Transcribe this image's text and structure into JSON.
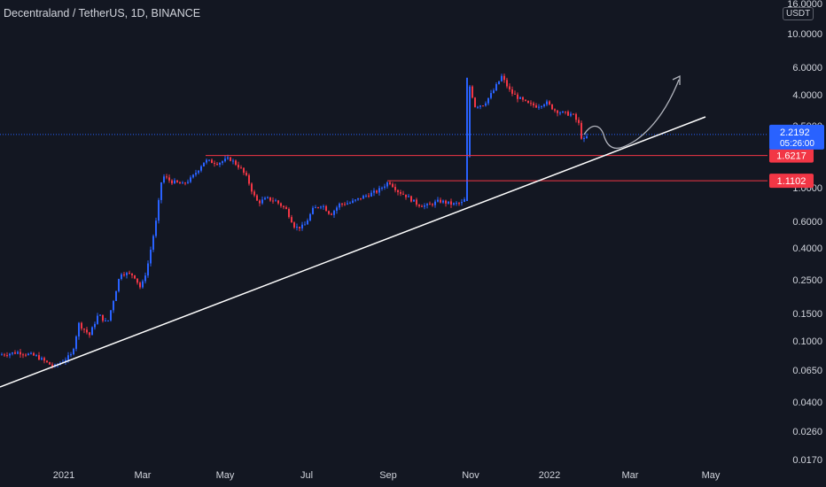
{
  "header": {
    "title": "Decentraland / TetherUS, 1D, BINANCE",
    "currency": "USDT"
  },
  "chart_data": {
    "type": "candlestick",
    "title": "Decentraland / TetherUS, 1D, BINANCE",
    "y_scale": "log",
    "y_ticks": [
      "16.0000",
      "10.0000",
      "6.0000",
      "4.0000",
      "2.5000",
      "1.0000",
      "0.6000",
      "0.4000",
      "0.2500",
      "0.1500",
      "0.1000",
      "0.0650",
      "0.0400",
      "0.0260",
      "0.0170"
    ],
    "x_ticks": [
      "2021",
      "Mar",
      "May",
      "Jul",
      "Sep",
      "Nov",
      "2022",
      "Mar",
      "May"
    ],
    "price_marker": {
      "value": "2.2192",
      "countdown": "05:26:00",
      "color": "#2962ff"
    },
    "levels": [
      {
        "value": "1.6217",
        "color": "#f23645"
      },
      {
        "value": "1.1102",
        "color": "#f23645"
      }
    ],
    "trendline": {
      "from": [
        "2020-12",
        0.045
      ],
      "to": [
        "2022-04",
        2.9
      ],
      "color": "#ffffff"
    },
    "projection": {
      "shape": "curved-arrow-up",
      "color": "#b2b5be"
    },
    "colors": {
      "up": "#2962ff",
      "down": "#f23645",
      "background": "#131722"
    }
  }
}
